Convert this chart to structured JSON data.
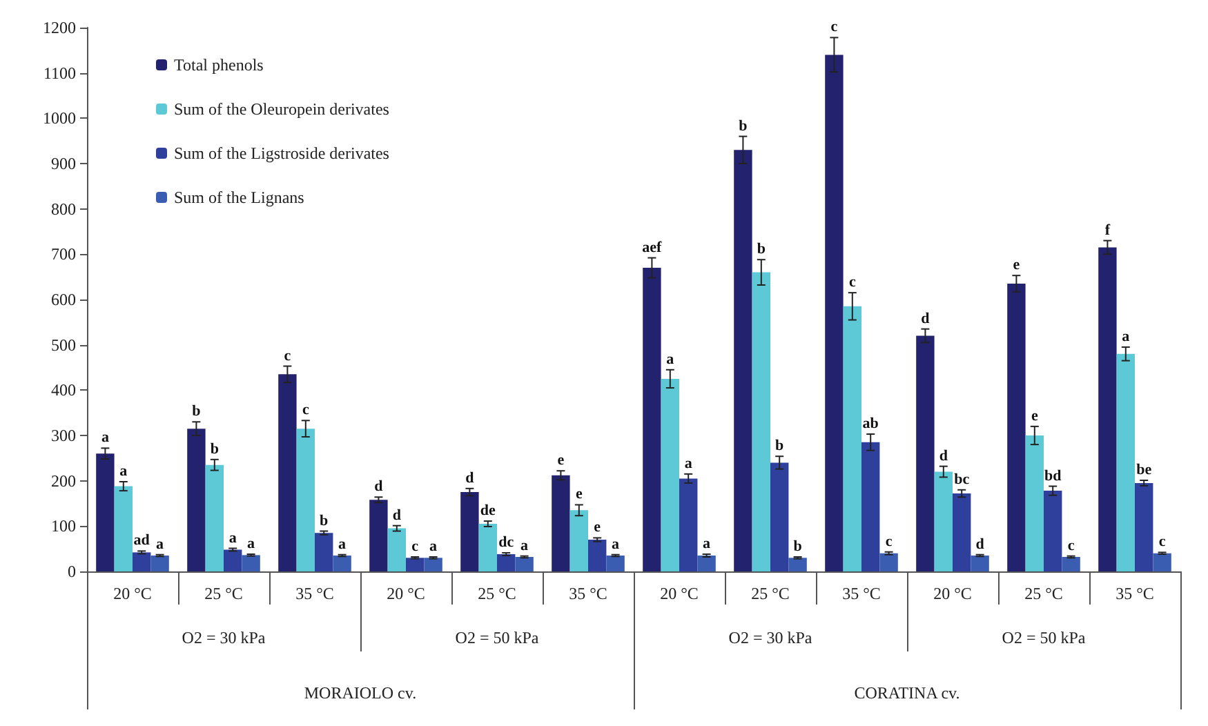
{
  "chart_data": {
    "type": "bar",
    "categories": [
      "20 °C",
      "25 °C",
      "35 °C",
      "20 °C",
      "25 °C",
      "35 °C",
      "20 °C",
      "25 °C",
      "35 °C",
      "20 °C",
      "25 °C",
      "35 °C"
    ],
    "series": [
      {
        "name": "Total phenols",
        "color": "#23226e",
        "values": [
          260,
          315,
          435,
          158,
          175,
          212,
          670,
          930,
          1140,
          520,
          635,
          715
        ],
        "errors": [
          12,
          15,
          18,
          6,
          8,
          10,
          22,
          30,
          38,
          15,
          18,
          15
        ],
        "value_labels": [
          "a",
          "b",
          "c",
          "d",
          "d",
          "e",
          "aef",
          "b",
          "c",
          "d",
          "e",
          "f"
        ]
      },
      {
        "name": "Sum of the Oleuropein derivates",
        "color": "#5ec9d6",
        "values": [
          188,
          235,
          315,
          95,
          105,
          135,
          425,
          660,
          585,
          220,
          300,
          480
        ],
        "errors": [
          10,
          12,
          18,
          6,
          6,
          12,
          20,
          28,
          30,
          12,
          20,
          15
        ],
        "value_labels": [
          "a",
          "b",
          "c",
          "d",
          "de",
          "e",
          "a",
          "b",
          "c",
          "d",
          "e",
          "a"
        ]
      },
      {
        "name": "Sum of the Ligstroside derivates",
        "color": "#2f3f9c",
        "values": [
          42,
          48,
          85,
          30,
          38,
          70,
          205,
          240,
          285,
          172,
          178,
          195
        ],
        "errors": [
          3,
          3,
          4,
          2,
          3,
          4,
          10,
          14,
          18,
          8,
          10,
          6
        ],
        "value_labels": [
          "ad",
          "a",
          "b",
          "c",
          "dc",
          "e",
          "a",
          "b",
          "ab",
          "bc",
          "bd",
          "be"
        ]
      },
      {
        "name": "Sum of the Lignans",
        "color": "#3a5db2",
        "values": [
          35,
          36,
          35,
          30,
          32,
          35,
          35,
          30,
          40,
          35,
          32,
          40
        ],
        "errors": [
          2,
          2,
          2,
          2,
          2,
          2,
          3,
          2,
          3,
          2,
          2,
          2
        ],
        "value_labels": [
          "a",
          "a",
          "a",
          "a",
          "a",
          "a",
          "a",
          "b",
          "c",
          "d",
          "c",
          "c"
        ]
      }
    ],
    "annotations": [
      "O2 = 30 kPa",
      "O2 = 50 kPa",
      "O2 = 30 kPa",
      "O2 = 50 kPa",
      "MORAIOLO cv.",
      "CORATINA cv."
    ],
    "ylim": [
      0,
      1200
    ],
    "yticks": [
      0,
      100,
      200,
      300,
      400,
      500,
      600,
      700,
      800,
      900,
      1000,
      1100,
      1200
    ],
    "grid": false,
    "legend": "top left"
  }
}
